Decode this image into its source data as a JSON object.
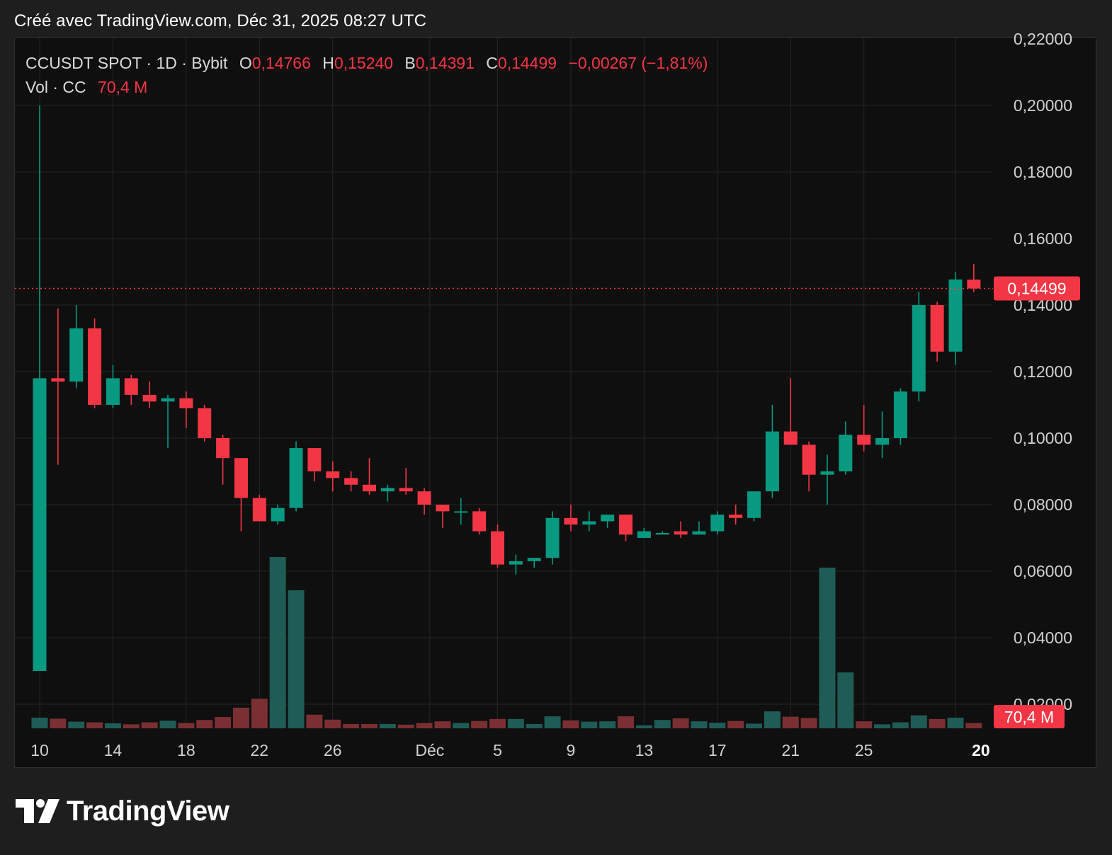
{
  "created_label": "Créé avec TradingView.com, Déc 31, 2025 08:27 UTC",
  "legend": {
    "symbol": "CCUSDT SPOT · 1D · Bybit",
    "o_label": "O",
    "o_value": "0,14766",
    "h_label": "H",
    "h_value": "0,15240",
    "b_label": "B",
    "b_value": "0,14391",
    "c_label": "C",
    "c_value": "0,14499",
    "change": "−0,00267 (−1,81%)",
    "vol_label": "Vol · CC",
    "vol_value": "70,4 M"
  },
  "brand": {
    "name": "TradingView"
  },
  "colors": {
    "up": "#089981",
    "down": "#f23645",
    "up_volume": "#1f5c55",
    "down_volume": "#7a2f32",
    "grid": "#262626",
    "axis_text": "#d1d1d1",
    "price_tag": "#f23645"
  },
  "chart_data": {
    "type": "candlestick",
    "symbol": "CCUSDT SPOT",
    "interval": "1D",
    "exchange": "Bybit",
    "y_axis": {
      "ticks": [
        "0,20000",
        "0,18000",
        "0,16000",
        "0,14000",
        "0,12000",
        "0,10000",
        "0,08000",
        "0,06000",
        "0,04000",
        "0,02000"
      ],
      "tick_values": [
        0.2,
        0.18,
        0.16,
        0.14,
        0.12,
        0.1,
        0.08,
        0.06,
        0.04,
        0.02
      ],
      "top_partial_tick": "0,22000",
      "range": [
        0.0,
        0.22
      ]
    },
    "x_axis": {
      "tick_labels": [
        {
          "label": "10",
          "day": 0
        },
        {
          "label": "14",
          "day": 4
        },
        {
          "label": "18",
          "day": 8
        },
        {
          "label": "22",
          "day": 12
        },
        {
          "label": "26",
          "day": 16
        },
        {
          "label": "Déc",
          "day": 21
        },
        {
          "label": "5",
          "day": 25
        },
        {
          "label": "9",
          "day": 29
        },
        {
          "label": "13",
          "day": 33
        },
        {
          "label": "17",
          "day": 37
        },
        {
          "label": "21",
          "day": 41
        },
        {
          "label": "25",
          "day": 45
        },
        {
          "label": "20",
          "day": 50
        }
      ]
    },
    "last_price_label": "0,14499",
    "last_price": 0.14499,
    "last_volume_label": "70,4 M",
    "grid": true,
    "candles": [
      {
        "date": "Nov 10",
        "open": 0.03,
        "high": 0.2,
        "low": 0.03,
        "close": 0.118,
        "volume": 3.2
      },
      {
        "date": "Nov 11",
        "open": 0.118,
        "high": 0.139,
        "low": 0.092,
        "close": 0.117,
        "volume": 2.9
      },
      {
        "date": "Nov 12",
        "open": 0.117,
        "high": 0.14,
        "low": 0.115,
        "close": 0.133,
        "volume": 2.0
      },
      {
        "date": "Nov 13",
        "open": 0.133,
        "high": 0.136,
        "low": 0.109,
        "close": 0.11,
        "volume": 1.8
      },
      {
        "date": "Nov 14",
        "open": 0.11,
        "high": 0.122,
        "low": 0.109,
        "close": 0.118,
        "volume": 1.5
      },
      {
        "date": "Nov 15",
        "open": 0.118,
        "high": 0.119,
        "low": 0.11,
        "close": 0.113,
        "volume": 1.2
      },
      {
        "date": "Nov 16",
        "open": 0.113,
        "high": 0.117,
        "low": 0.109,
        "close": 0.111,
        "volume": 1.8
      },
      {
        "date": "Nov 17",
        "open": 0.111,
        "high": 0.113,
        "low": 0.097,
        "close": 0.112,
        "volume": 2.3
      },
      {
        "date": "Nov 18",
        "open": 0.112,
        "high": 0.114,
        "low": 0.103,
        "close": 0.109,
        "volume": 1.6
      },
      {
        "date": "Nov 19",
        "open": 0.109,
        "high": 0.11,
        "low": 0.099,
        "close": 0.1,
        "volume": 2.5
      },
      {
        "date": "Nov 20",
        "open": 0.1,
        "high": 0.101,
        "low": 0.086,
        "close": 0.094,
        "volume": 3.4
      },
      {
        "date": "Nov 21",
        "open": 0.094,
        "high": 0.094,
        "low": 0.072,
        "close": 0.082,
        "volume": 6.2
      },
      {
        "date": "Nov 22",
        "open": 0.082,
        "high": 0.083,
        "low": 0.075,
        "close": 0.075,
        "volume": 8.9
      },
      {
        "date": "Nov 23",
        "open": 0.075,
        "high": 0.08,
        "low": 0.074,
        "close": 0.079,
        "volume": 51.5
      },
      {
        "date": "Nov 24",
        "open": 0.079,
        "high": 0.099,
        "low": 0.078,
        "close": 0.097,
        "volume": 41.5
      },
      {
        "date": "Nov 25",
        "open": 0.097,
        "high": 0.097,
        "low": 0.087,
        "close": 0.09,
        "volume": 4.1
      },
      {
        "date": "Nov 26",
        "open": 0.09,
        "high": 0.093,
        "low": 0.084,
        "close": 0.088,
        "volume": 2.6
      },
      {
        "date": "Nov 27",
        "open": 0.088,
        "high": 0.09,
        "low": 0.084,
        "close": 0.086,
        "volume": 1.3
      },
      {
        "date": "Nov 28",
        "open": 0.086,
        "high": 0.094,
        "low": 0.083,
        "close": 0.084,
        "volume": 1.3
      },
      {
        "date": "Nov 29",
        "open": 0.084,
        "high": 0.086,
        "low": 0.081,
        "close": 0.085,
        "volume": 1.3
      },
      {
        "date": "Nov 30",
        "open": 0.085,
        "high": 0.091,
        "low": 0.083,
        "close": 0.084,
        "volume": 1.1
      },
      {
        "date": "Déc 1",
        "open": 0.084,
        "high": 0.085,
        "low": 0.077,
        "close": 0.08,
        "volume": 1.6
      },
      {
        "date": "Déc 2",
        "open": 0.08,
        "high": 0.08,
        "low": 0.073,
        "close": 0.078,
        "volume": 2.1
      },
      {
        "date": "Déc 3",
        "open": 0.078,
        "high": 0.082,
        "low": 0.074,
        "close": 0.078,
        "volume": 1.6
      },
      {
        "date": "Déc 4",
        "open": 0.078,
        "high": 0.079,
        "low": 0.071,
        "close": 0.072,
        "volume": 2.2
      },
      {
        "date": "Déc 5",
        "open": 0.072,
        "high": 0.074,
        "low": 0.061,
        "close": 0.062,
        "volume": 2.8
      },
      {
        "date": "Déc 6",
        "open": 0.062,
        "high": 0.065,
        "low": 0.059,
        "close": 0.063,
        "volume": 2.8
      },
      {
        "date": "Déc 7",
        "open": 0.063,
        "high": 0.064,
        "low": 0.061,
        "close": 0.064,
        "volume": 1.3
      },
      {
        "date": "Déc 8",
        "open": 0.064,
        "high": 0.078,
        "low": 0.062,
        "close": 0.076,
        "volume": 3.6
      },
      {
        "date": "Déc 9",
        "open": 0.076,
        "high": 0.08,
        "low": 0.072,
        "close": 0.074,
        "volume": 2.4
      },
      {
        "date": "Déc 10",
        "open": 0.074,
        "high": 0.078,
        "low": 0.072,
        "close": 0.075,
        "volume": 2.0
      },
      {
        "date": "Déc 11",
        "open": 0.075,
        "high": 0.077,
        "low": 0.073,
        "close": 0.077,
        "volume": 2.1
      },
      {
        "date": "Déc 12",
        "open": 0.077,
        "high": 0.077,
        "low": 0.069,
        "close": 0.071,
        "volume": 3.6
      },
      {
        "date": "Déc 13",
        "open": 0.07,
        "high": 0.073,
        "low": 0.07,
        "close": 0.072,
        "volume": 0.9
      },
      {
        "date": "Déc 14",
        "open": 0.071,
        "high": 0.072,
        "low": 0.071,
        "close": 0.0715,
        "volume": 2.5
      },
      {
        "date": "Déc 15",
        "open": 0.072,
        "high": 0.075,
        "low": 0.07,
        "close": 0.071,
        "volume": 3.0
      },
      {
        "date": "Déc 16",
        "open": 0.071,
        "high": 0.075,
        "low": 0.071,
        "close": 0.072,
        "volume": 2.1
      },
      {
        "date": "Déc 17",
        "open": 0.072,
        "high": 0.078,
        "low": 0.071,
        "close": 0.077,
        "volume": 1.7
      },
      {
        "date": "Déc 18",
        "open": 0.077,
        "high": 0.08,
        "low": 0.074,
        "close": 0.076,
        "volume": 2.2
      },
      {
        "date": "Déc 19",
        "open": 0.076,
        "high": 0.084,
        "low": 0.075,
        "close": 0.084,
        "volume": 1.4
      },
      {
        "date": "Déc 20",
        "open": 0.084,
        "high": 0.11,
        "low": 0.082,
        "close": 0.102,
        "volume": 5.1
      },
      {
        "date": "Déc 21",
        "open": 0.102,
        "high": 0.118,
        "low": 0.098,
        "close": 0.098,
        "volume": 3.5
      },
      {
        "date": "Déc 22",
        "open": 0.098,
        "high": 0.099,
        "low": 0.084,
        "close": 0.089,
        "volume": 3.1
      },
      {
        "date": "Déc 23",
        "open": 0.089,
        "high": 0.095,
        "low": 0.08,
        "close": 0.09,
        "volume": 48.3
      },
      {
        "date": "Déc 24",
        "open": 0.09,
        "high": 0.105,
        "low": 0.089,
        "close": 0.101,
        "volume": 16.8
      },
      {
        "date": "Déc 25",
        "open": 0.101,
        "high": 0.11,
        "low": 0.096,
        "close": 0.098,
        "volume": 2.1
      },
      {
        "date": "Déc 26",
        "open": 0.098,
        "high": 0.108,
        "low": 0.094,
        "close": 0.1,
        "volume": 1.2
      },
      {
        "date": "Déc 27",
        "open": 0.1,
        "high": 0.115,
        "low": 0.098,
        "close": 0.114,
        "volume": 1.8
      },
      {
        "date": "Déc 28",
        "open": 0.114,
        "high": 0.144,
        "low": 0.111,
        "close": 0.14,
        "volume": 3.9
      },
      {
        "date": "Déc 29",
        "open": 0.14,
        "high": 0.141,
        "low": 0.123,
        "close": 0.126,
        "volume": 2.8
      },
      {
        "date": "Déc 30",
        "open": 0.126,
        "high": 0.15,
        "low": 0.122,
        "close": 0.1477,
        "volume": 3.2
      },
      {
        "date": "Déc 31",
        "open": 0.14766,
        "high": 0.1524,
        "low": 0.14391,
        "close": 0.14499,
        "volume": 1.6
      }
    ]
  }
}
